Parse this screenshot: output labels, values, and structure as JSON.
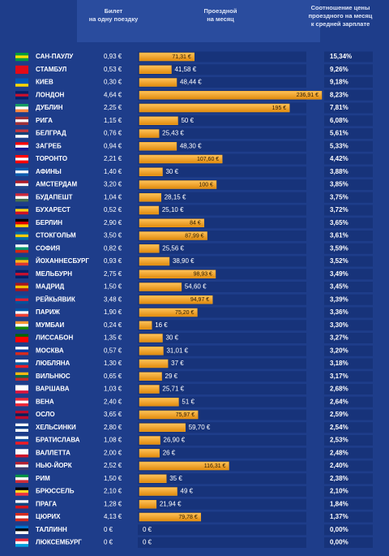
{
  "chart_data": {
    "type": "bar",
    "orientation": "horizontal",
    "headers": {
      "ticket": [
        "Билет",
        "на одну поездку"
      ],
      "monthly": [
        "Проездной",
        "на месяц"
      ],
      "ratio": [
        "Соотношение цены",
        "проездного на месяц",
        "к средней зарплате"
      ]
    },
    "categories": [
      "САН-ПАУЛУ",
      "СТАМБУЛ",
      "КИЕВ",
      "ЛОНДОН",
      "ДУБЛИН",
      "РИГА",
      "БЕЛГРАД",
      "ЗАГРЕБ",
      "ТОРОНТО",
      "АФИНЫ",
      "АМСТЕРДАМ",
      "БУДАПЕШТ",
      "БУХАРЕСТ",
      "БЕРЛИН",
      "СТОКГОЛЬМ",
      "СОФИЯ",
      "ЙОХАННЕСБУРГ",
      "МЕЛЬБУРН",
      "МАДРИД",
      "РЕЙКЬЯВИК",
      "ПАРИЖ",
      "МУМБАИ",
      "ЛИССАБОН",
      "МОСКВА",
      "ЛЮБЛЯНА",
      "ВИЛЬНЮС",
      "ВАРШАВА",
      "ВЕНА",
      "ОСЛО",
      "ХЕЛЬСИНКИ",
      "БРАТИСЛАВА",
      "ВАЛЛЕТТА",
      "НЬЮ-ЙОРК",
      "РИМ",
      "БРЮССЕЛЬ",
      "ПРАГА",
      "ЦЮРИХ",
      "ТАЛЛИНН",
      "ЛЮКСЕМБУРГ"
    ],
    "ticket": [
      "0,93 €",
      "0,53 €",
      "0,30 €",
      "4,64 €",
      "2,25 €",
      "1,15 €",
      "0,76 €",
      "0,94 €",
      "2,21 €",
      "1,40 €",
      "3,20 €",
      "1,04 €",
      "0,52 €",
      "2,90 €",
      "3,50 €",
      "0,82 €",
      "0,93 €",
      "2,75 €",
      "1,50 €",
      "3,48 €",
      "1,90 €",
      "0,24 €",
      "1,35 €",
      "0,57 €",
      "1,30 €",
      "0,65 €",
      "1,03 €",
      "2,40 €",
      "3,65 €",
      "2,80 €",
      "1,08 €",
      "2,00 €",
      "2,52 €",
      "1,50 €",
      "2,10 €",
      "1,28 €",
      "4,13 €",
      "0 €",
      "0 €"
    ],
    "values": [
      71.31,
      41.58,
      48.44,
      236.91,
      195,
      50,
      25.43,
      48.3,
      107.6,
      30,
      100,
      28.15,
      25.1,
      84,
      87.99,
      25.56,
      38.9,
      98.93,
      54.6,
      94.97,
      75.2,
      16,
      30,
      31.01,
      37,
      29,
      25.71,
      51,
      75.97,
      59.7,
      26.9,
      26,
      116.31,
      35,
      49,
      21.94,
      79.78,
      0,
      0
    ],
    "value_labels": [
      "71,31 €",
      "41,58 €",
      "48,44 €",
      "236,91 €",
      "195 €",
      "50 €",
      "25,43 €",
      "48,30 €",
      "107,60 €",
      "30 €",
      "100 €",
      "28,15 €",
      "25,10 €",
      "84 €",
      "87,99 €",
      "25,56 €",
      "38,90 €",
      "98,93 €",
      "54,60 €",
      "94,97 €",
      "75,20 €",
      "16 €",
      "30 €",
      "31,01 €",
      "37 €",
      "29 €",
      "25,71 €",
      "51 €",
      "75,97 €",
      "59,70 €",
      "26,90 €",
      "26 €",
      "116,31 €",
      "35 €",
      "49 €",
      "21,94 €",
      "79,78 €",
      "0 €",
      "0 €"
    ],
    "ratio": [
      "15,34%",
      "9,26%",
      "9,18%",
      "8,23%",
      "7,81%",
      "6,08%",
      "5,61%",
      "5,33%",
      "4,42%",
      "3,88%",
      "3,85%",
      "3,75%",
      "3,72%",
      "3,65%",
      "3,61%",
      "3,59%",
      "3,52%",
      "3,49%",
      "3,45%",
      "3,39%",
      "3,36%",
      "3,30%",
      "3,27%",
      "3,20%",
      "3,18%",
      "3,17%",
      "2,68%",
      "2,64%",
      "2,59%",
      "2,54%",
      "2,53%",
      "2,48%",
      "2,40%",
      "2,38%",
      "2,10%",
      "1,84%",
      "1,37%",
      "0,00%",
      "0,00%"
    ],
    "color": "#f5a623"
  }
}
